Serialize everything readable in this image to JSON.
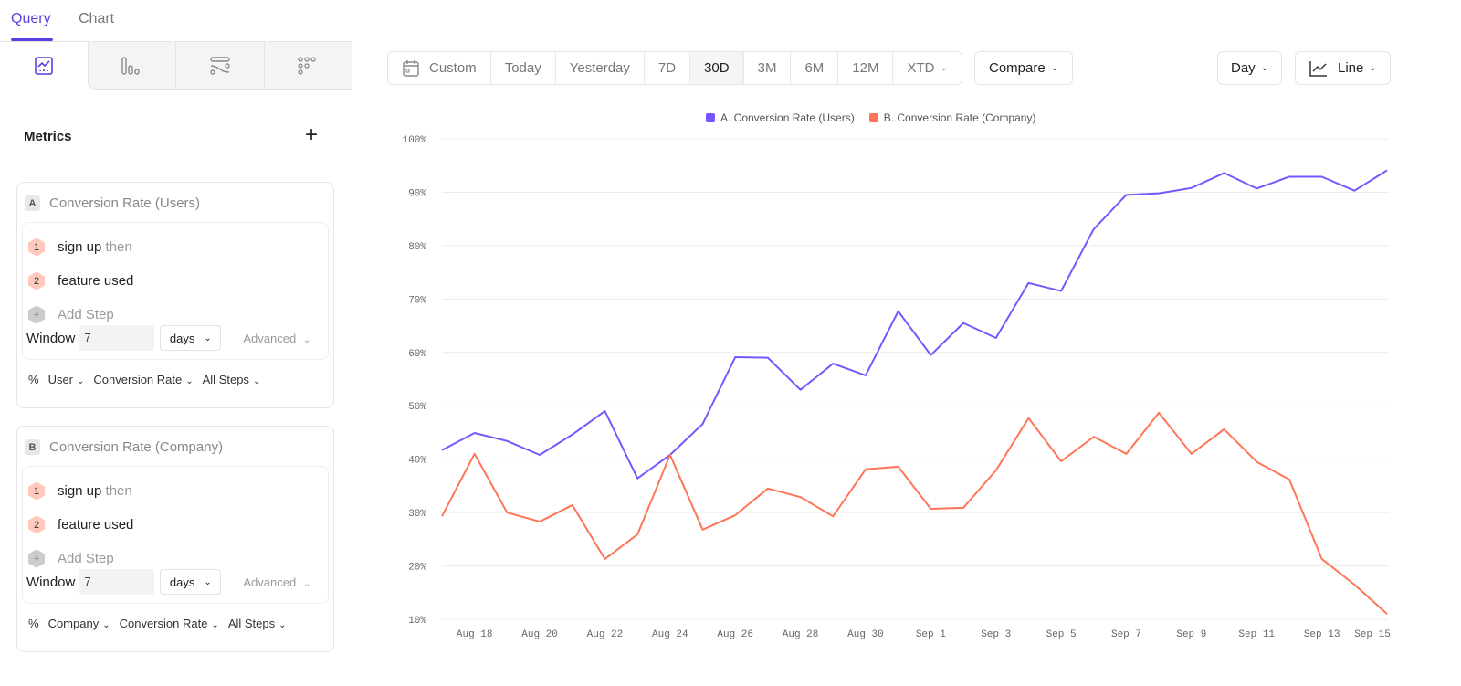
{
  "sidebar": {
    "tabs": [
      {
        "label": "Query",
        "active": true
      },
      {
        "label": "Chart",
        "active": false
      }
    ],
    "view_icons": [
      "insights-chart-icon",
      "bar-chart-icon",
      "flows-icon",
      "retention-dots-icon"
    ],
    "metrics_label": "Metrics",
    "cards": [
      {
        "letter": "A",
        "title": "Conversion Rate (Users)",
        "steps": [
          {
            "n": "1",
            "name": "sign up",
            "suffix": "then"
          },
          {
            "n": "2",
            "name": "feature used",
            "suffix": ""
          }
        ],
        "add_step": "Add Step",
        "window_label": "Window",
        "window_value": "7",
        "window_unit": "days",
        "advanced": "Advanced",
        "footer": [
          "%",
          "User",
          "Conversion Rate",
          "All Steps"
        ]
      },
      {
        "letter": "B",
        "title": "Conversion Rate (Company)",
        "steps": [
          {
            "n": "1",
            "name": "sign up",
            "suffix": "then"
          },
          {
            "n": "2",
            "name": "feature used",
            "suffix": ""
          }
        ],
        "add_step": "Add Step",
        "window_label": "Window",
        "window_value": "7",
        "window_unit": "days",
        "advanced": "Advanced",
        "footer": [
          "%",
          "Company",
          "Conversion Rate",
          "All Steps"
        ]
      }
    ]
  },
  "toolbar": {
    "ranges": [
      "Custom",
      "Today",
      "Yesterday",
      "7D",
      "30D",
      "3M",
      "6M",
      "12M",
      "XTD"
    ],
    "active_range": "30D",
    "compare": "Compare",
    "interval": "Day",
    "chart_type": "Line"
  },
  "colors": {
    "accent": "#5b3fe0",
    "series_a": "#7856ff",
    "series_b": "#ff7557"
  },
  "chart_data": {
    "type": "line",
    "legend_position": "top",
    "grid": true,
    "ylim": [
      10,
      100
    ],
    "y_ticks": [
      "10%",
      "20%",
      "30%",
      "40%",
      "50%",
      "60%",
      "70%",
      "80%",
      "90%",
      "100%"
    ],
    "x": [
      "Aug 17",
      "Aug 18",
      "Aug 19",
      "Aug 20",
      "Aug 21",
      "Aug 22",
      "Aug 23",
      "Aug 24",
      "Aug 25",
      "Aug 26",
      "Aug 27",
      "Aug 28",
      "Aug 29",
      "Aug 30",
      "Aug 31",
      "Sep 1",
      "Sep 2",
      "Sep 3",
      "Sep 4",
      "Sep 5",
      "Sep 6",
      "Sep 7",
      "Sep 8",
      "Sep 9",
      "Sep 10",
      "Sep 11",
      "Sep 12",
      "Sep 13",
      "Sep 14",
      "Sep 15"
    ],
    "x_tick_labels": [
      "Aug 18",
      "Aug 20",
      "Aug 22",
      "Aug 24",
      "Aug 26",
      "Aug 28",
      "Aug 30",
      "Sep 1",
      "Sep 3",
      "Sep 5",
      "Sep 7",
      "Sep 9",
      "Sep 11",
      "Sep 13",
      "Sep 15"
    ],
    "series": [
      {
        "name": "A. Conversion Rate (Users)",
        "values": [
          41.7,
          44.9,
          43.4,
          40.8,
          44.6,
          49.0,
          36.4,
          40.8,
          46.6,
          59.1,
          59.0,
          53.0,
          57.9,
          55.7,
          67.7,
          59.5,
          65.5,
          62.7,
          73.0,
          71.5,
          83.1,
          89.5,
          89.8,
          90.8,
          93.6,
          90.7,
          92.9,
          92.9,
          90.3,
          94.1
        ]
      },
      {
        "name": "B. Conversion Rate (Company)",
        "values": [
          29.3,
          41.0,
          30.0,
          28.3,
          31.4,
          21.3,
          25.9,
          40.8,
          26.8,
          29.5,
          34.5,
          32.9,
          29.3,
          38.1,
          38.6,
          30.7,
          30.9,
          37.9,
          47.7,
          39.6,
          44.2,
          41.0,
          48.7,
          41.0,
          45.6,
          39.5,
          36.2,
          21.3,
          16.5,
          11.0
        ]
      }
    ]
  }
}
